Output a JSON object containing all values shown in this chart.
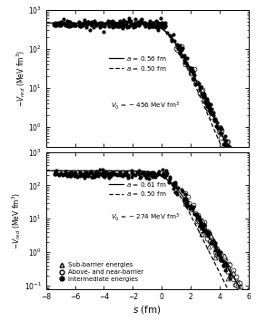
{
  "top_panel": {
    "V0": 456,
    "a_solid": 0.56,
    "a_dashed": 0.5,
    "ylim_log": [
      -0.5,
      3.0
    ],
    "flat_level": 430,
    "legend_solid": "a = 0.56 fm",
    "legend_dashed": "a = 0.50 fm",
    "annot": "V_0 = - 456 MeV fm^3"
  },
  "bottom_panel": {
    "V0": 274,
    "a_solid": 0.61,
    "a_dashed": 0.5,
    "ylim_log": [
      -1.1,
      3.0
    ],
    "flat_level": 220,
    "legend_solid": "a = 0.61 fm",
    "legend_dashed": "a = 0.50 fm",
    "annot": "V_0 = - 274 MeV fm^3"
  },
  "shared": {
    "xlim": [
      -8,
      6
    ],
    "xticks": [
      -8,
      -6,
      -4,
      -2,
      0,
      2,
      4,
      6
    ],
    "xlabel": "s (fm)"
  }
}
